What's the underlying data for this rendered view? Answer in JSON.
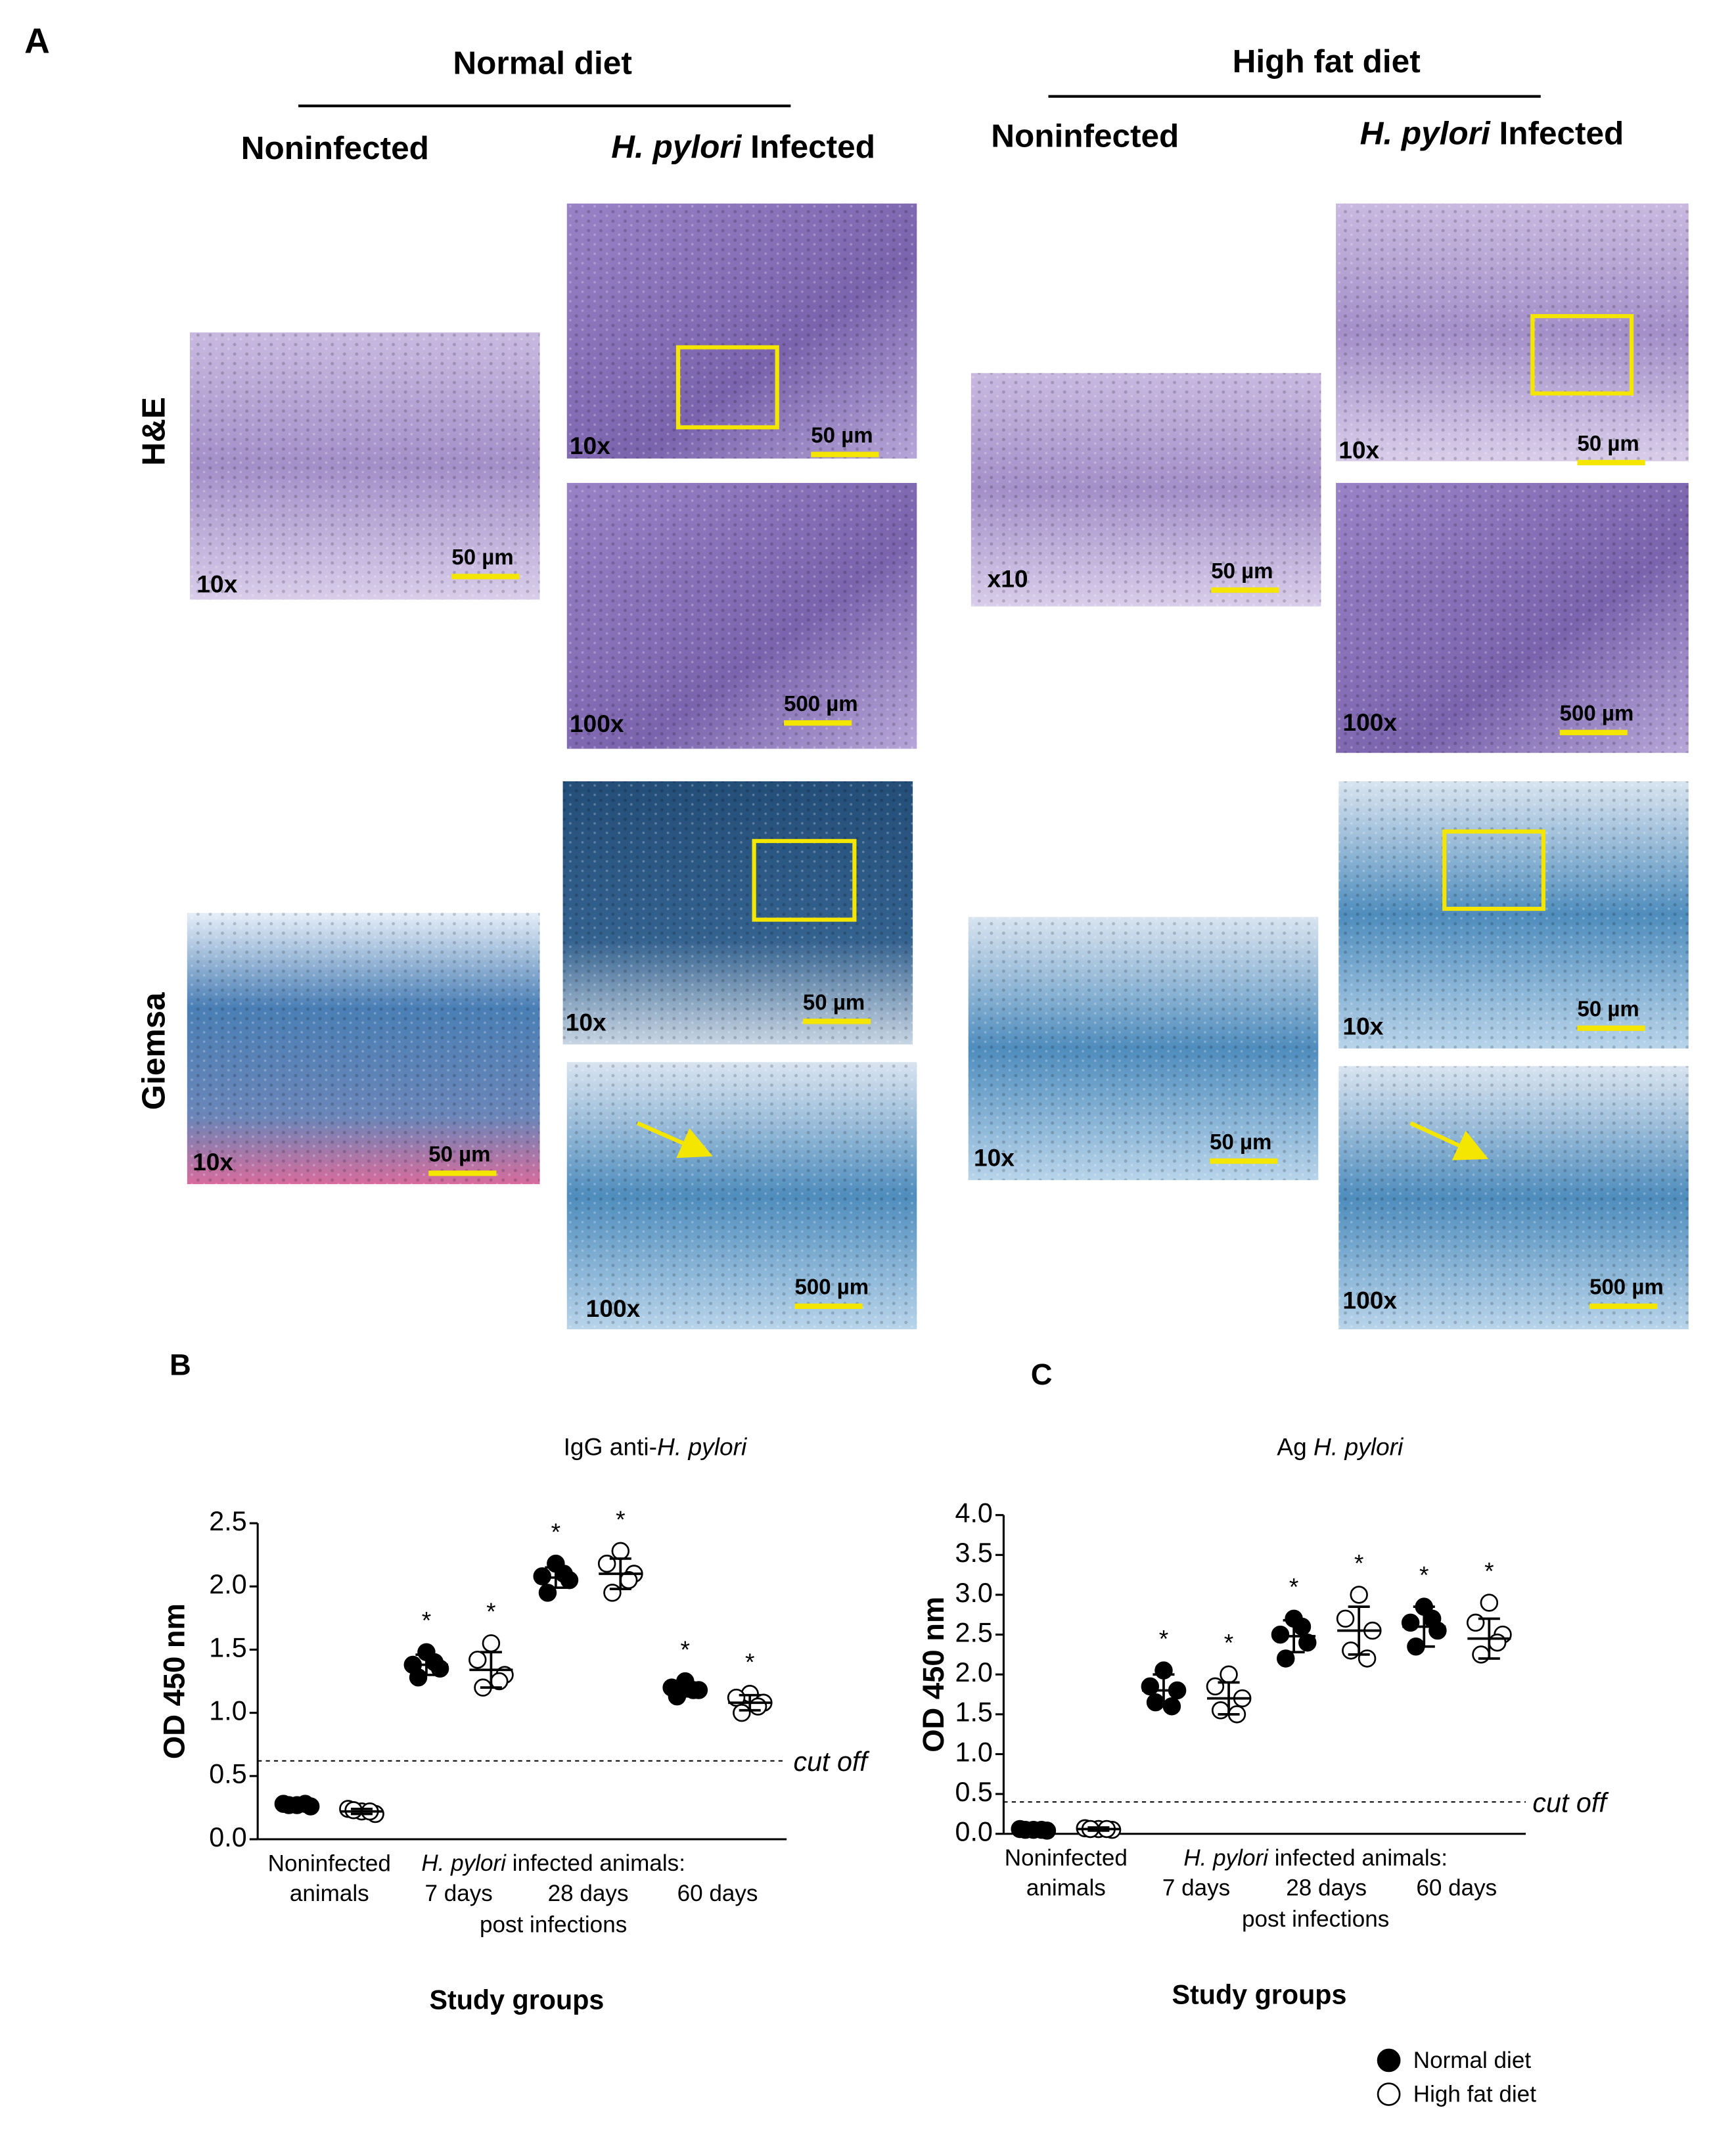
{
  "panel_a": {
    "label": "A",
    "groups": [
      {
        "title": "Normal diet",
        "columns": [
          [
            {
              "text": "Noninfected",
              "italic": false
            }
          ],
          [
            {
              "text": "H. pylori",
              "italic": true
            },
            {
              "text": " Infected",
              "italic": false
            }
          ]
        ]
      },
      {
        "title": "High fat diet",
        "columns": [
          [
            {
              "text": "Noninfected",
              "italic": false
            }
          ],
          [
            {
              "text": "H. pylori",
              "italic": true
            },
            {
              "text": " Infected",
              "italic": false
            }
          ]
        ]
      }
    ],
    "rows": [
      "H&E",
      "Giemsa"
    ],
    "images": [
      {
        "magnification": "10x",
        "scale_bar": "50 µm"
      },
      {
        "magnification": "10x",
        "scale_bar": "50 µm"
      },
      {
        "magnification": "100x",
        "scale_bar": "500 µm"
      },
      {
        "magnification": "x10",
        "scale_bar": "50 µm"
      },
      {
        "magnification": "10x",
        "scale_bar": "50 µm"
      },
      {
        "magnification": "100x",
        "scale_bar": "500 µm"
      },
      {
        "magnification": "10x",
        "scale_bar": "50 µm"
      },
      {
        "magnification": "10x",
        "scale_bar": "50 µm"
      },
      {
        "magnification": "100x",
        "scale_bar": "500 µm"
      },
      {
        "magnification": "10x",
        "scale_bar": "50 µm"
      },
      {
        "magnification": "10x",
        "scale_bar": "50 µm"
      },
      {
        "magnification": "100x",
        "scale_bar": "500 µm"
      }
    ]
  },
  "chart_data": [
    {
      "type": "scatter",
      "panel_label": "B",
      "title": [
        {
          "text": "IgG anti-",
          "italic": false
        },
        {
          "text": "H. pylori",
          "italic": true
        }
      ],
      "ylabel": "OD 450 nm",
      "xlabel": "Study groups",
      "categories": [
        [
          "Noninfected",
          "animals"
        ],
        "7 days",
        "28 days",
        "60 days"
      ],
      "group_label": [
        {
          "text": "H. pylori",
          "italic": true
        },
        {
          "text": " infected animals:",
          "italic": false
        }
      ],
      "group_sublabel": "post infections",
      "ylim": [
        0,
        2.5
      ],
      "yticks": [
        {
          "value": 0,
          "label": "0.0"
        },
        0.5,
        {
          "value": 1,
          "label": "1.0"
        },
        1.5,
        {
          "value": 2,
          "label": "2.0"
        },
        2.5
      ],
      "cutoff": {
        "value": 0.62,
        "label": "cut off"
      },
      "series": [
        {
          "name": "Normal diet",
          "color": "#000000",
          "marker": "filled",
          "values": [
            [
              0.27,
              0.28,
              0.26,
              0.27,
              0.28
            ],
            [
              1.48,
              1.38,
              1.35,
              1.28,
              1.4
            ],
            [
              2.18,
              2.08,
              2.05,
              1.95,
              2.1
            ],
            [
              1.25,
              1.2,
              1.18,
              1.13,
              1.18
            ]
          ],
          "mean": [
            0.27,
            1.38,
            2.07,
            1.18
          ],
          "sd": [
            0.01,
            0.08,
            0.08,
            0.05
          ],
          "significance": [
            null,
            "*",
            "*",
            "*"
          ]
        },
        {
          "name": "High fat diet",
          "color": "#000000",
          "marker": "open",
          "values": [
            [
              0.22,
              0.24,
              0.2,
              0.23,
              0.22
            ],
            [
              1.55,
              1.42,
              1.3,
              1.2,
              1.25
            ],
            [
              2.28,
              2.18,
              2.1,
              1.95,
              2.05
            ],
            [
              1.15,
              1.12,
              1.08,
              1.0,
              1.05
            ]
          ],
          "mean": [
            0.22,
            1.34,
            2.1,
            1.08
          ],
          "sd": [
            0.02,
            0.14,
            0.12,
            0.06
          ],
          "significance": [
            null,
            "*",
            "*",
            "*"
          ]
        }
      ]
    },
    {
      "type": "scatter",
      "panel_label": "C",
      "title": [
        {
          "text": "Ag ",
          "italic": false
        },
        {
          "text": "H. pylori",
          "italic": true
        }
      ],
      "ylabel": "OD 450 nm",
      "xlabel": "Study groups",
      "categories": [
        [
          "Noninfected",
          "animals"
        ],
        "7 days",
        "28 days",
        "60 days"
      ],
      "group_label": [
        {
          "text": "H. pylori",
          "italic": true
        },
        {
          "text": " infected animals:",
          "italic": false
        }
      ],
      "group_sublabel": "post infections",
      "ylim": [
        0,
        4
      ],
      "yticks": [
        {
          "value": 0,
          "label": "0.0"
        },
        0.5,
        {
          "value": 1,
          "label": "1.0"
        },
        1.5,
        {
          "value": 2,
          "label": "2.0"
        },
        2.5,
        {
          "value": 3,
          "label": "3.0"
        },
        3.5,
        {
          "value": 4,
          "label": "4.0"
        }
      ],
      "cutoff": {
        "value": 0.4,
        "label": "cut off"
      },
      "legend": "bottom-right",
      "series": [
        {
          "name": "Normal diet",
          "color": "#000000",
          "marker": "filled",
          "values": [
            [
              0.05,
              0.06,
              0.04,
              0.05,
              0.05
            ],
            [
              2.05,
              1.85,
              1.8,
              1.65,
              1.6
            ],
            [
              2.7,
              2.5,
              2.4,
              2.2,
              2.6
            ],
            [
              2.85,
              2.65,
              2.55,
              2.35,
              2.7
            ]
          ],
          "mean": [
            0.05,
            1.8,
            2.48,
            2.6
          ],
          "sd": [
            0.02,
            0.2,
            0.2,
            0.25
          ],
          "significance": [
            null,
            "*",
            "*",
            "*"
          ]
        },
        {
          "name": "High fat diet",
          "color": "#000000",
          "marker": "open",
          "values": [
            [
              0.06,
              0.07,
              0.05,
              0.06,
              0.06
            ],
            [
              2.0,
              1.85,
              1.7,
              1.55,
              1.5
            ],
            [
              3.0,
              2.7,
              2.55,
              2.3,
              2.2
            ],
            [
              2.9,
              2.65,
              2.5,
              2.25,
              2.4
            ]
          ],
          "mean": [
            0.06,
            1.7,
            2.55,
            2.45
          ],
          "sd": [
            0.02,
            0.2,
            0.3,
            0.25
          ],
          "significance": [
            null,
            "*",
            "*",
            "*"
          ]
        }
      ]
    }
  ]
}
